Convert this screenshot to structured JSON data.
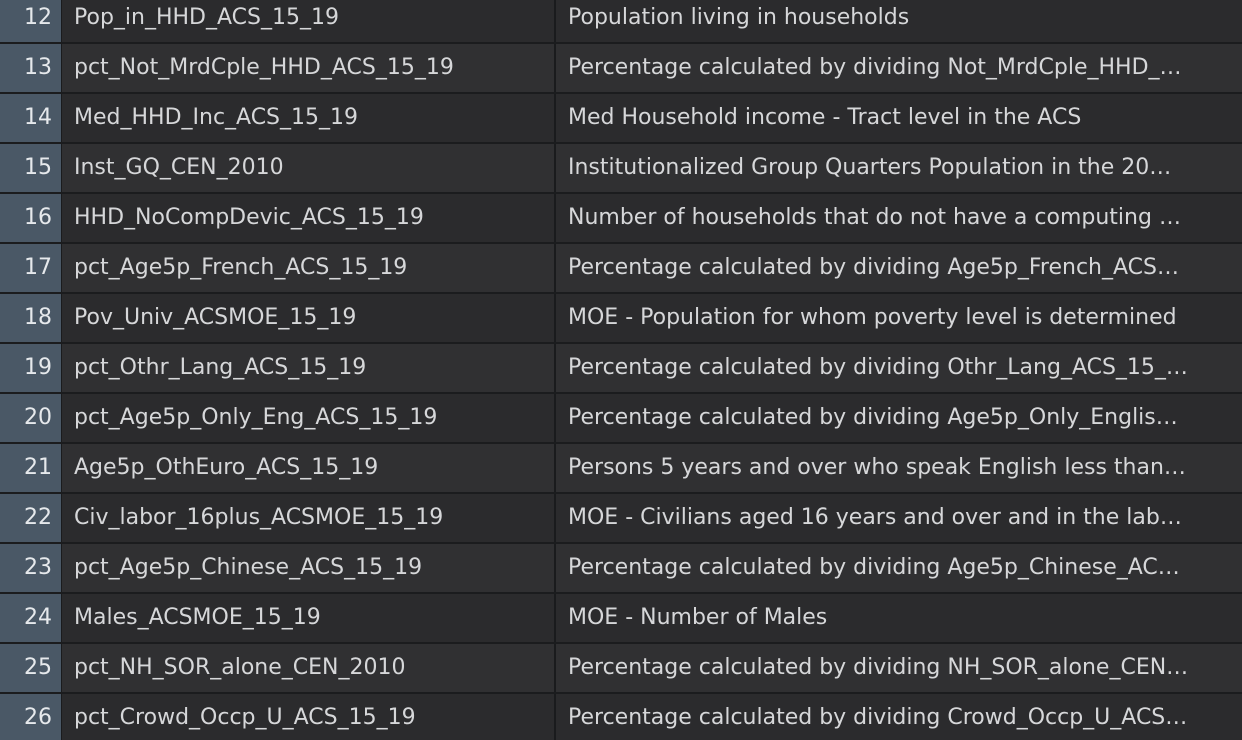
{
  "table": {
    "rows": [
      {
        "num": "12",
        "name": "Pop_in_HHD_ACS_15_19",
        "description": "Population living in households"
      },
      {
        "num": "13",
        "name": "pct_Not_MrdCple_HHD_ACS_15_19",
        "description": "Percentage calculated by dividing Not_MrdCple_HHD_…"
      },
      {
        "num": "14",
        "name": "Med_HHD_Inc_ACS_15_19",
        "description": "Med Household income - Tract level in the ACS"
      },
      {
        "num": "15",
        "name": "Inst_GQ_CEN_2010",
        "description": "Institutionalized Group Quarters Population in the 20…"
      },
      {
        "num": "16",
        "name": "HHD_NoCompDevic_ACS_15_19",
        "description": "Number of households that do not have a computing …"
      },
      {
        "num": "17",
        "name": "pct_Age5p_French_ACS_15_19",
        "description": "Percentage calculated by dividing Age5p_French_ACS…"
      },
      {
        "num": "18",
        "name": "Pov_Univ_ACSMOE_15_19",
        "description": "MOE - Population for whom poverty level is determined"
      },
      {
        "num": "19",
        "name": "pct_Othr_Lang_ACS_15_19",
        "description": "Percentage calculated by dividing Othr_Lang_ACS_15_…"
      },
      {
        "num": "20",
        "name": "pct_Age5p_Only_Eng_ACS_15_19",
        "description": "Percentage calculated by dividing Age5p_Only_Englis…"
      },
      {
        "num": "21",
        "name": "Age5p_OthEuro_ACS_15_19",
        "description": "Persons 5 years and over who speak English less than…"
      },
      {
        "num": "22",
        "name": "Civ_labor_16plus_ACSMOE_15_19",
        "description": "MOE - Civilians aged 16 years and over and in the lab…"
      },
      {
        "num": "23",
        "name": "pct_Age5p_Chinese_ACS_15_19",
        "description": "Percentage calculated by dividing Age5p_Chinese_AC…"
      },
      {
        "num": "24",
        "name": "Males_ACSMOE_15_19",
        "description": "MOE - Number of Males"
      },
      {
        "num": "25",
        "name": "pct_NH_SOR_alone_CEN_2010",
        "description": "Percentage calculated by dividing NH_SOR_alone_CEN…"
      },
      {
        "num": "26",
        "name": "pct_Crowd_Occp_U_ACS_15_19",
        "description": "Percentage calculated by dividing Crowd_Occp_U_ACS…"
      }
    ]
  }
}
